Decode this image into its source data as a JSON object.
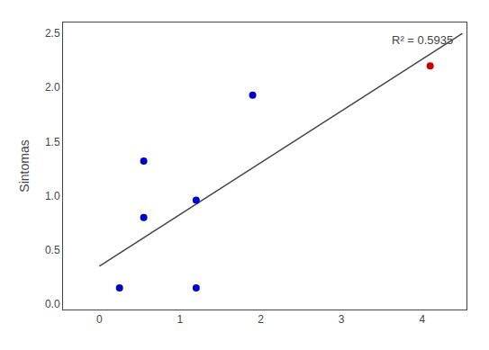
{
  "chart_data": {
    "type": "scatter",
    "ylabel": "Sintomas",
    "annotation": "R² = 0.5935",
    "series": [
      {
        "type": "line",
        "color": "#444444",
        "x": [
          0.0,
          4.5
        ],
        "values": [
          0.35,
          2.5
        ]
      },
      {
        "type": "scatter",
        "color": "#0000CC",
        "x": [
          0.25,
          0.55,
          0.55,
          1.2,
          1.2,
          1.9
        ],
        "values": [
          0.15,
          0.8,
          1.32,
          0.15,
          0.96,
          1.93
        ]
      },
      {
        "type": "scatter",
        "color": "#CC0000",
        "x": [
          4.1
        ],
        "values": [
          2.2
        ]
      }
    ],
    "xlim": [
      -0.45,
      4.55
    ],
    "ylim": [
      -0.05,
      2.6
    ],
    "xticks": [
      0,
      1,
      2,
      3,
      4
    ],
    "yticks": [
      {
        "value": 0.0,
        "label": "0.0"
      },
      0.5,
      {
        "value": 1.0,
        "label": "1.0"
      },
      1.5,
      {
        "value": 2.0,
        "label": "2.0"
      },
      2.5
    ],
    "grid": false
  }
}
